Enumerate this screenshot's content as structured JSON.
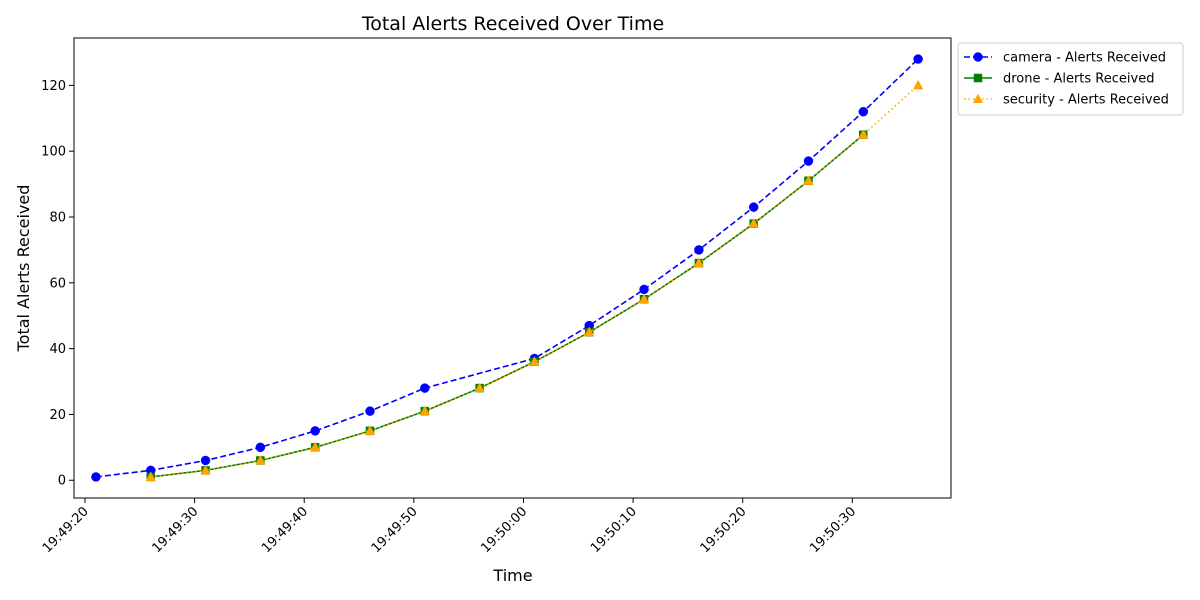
{
  "chart_data": {
    "type": "line",
    "title": "Total Alerts Received Over Time",
    "xlabel": "Time",
    "ylabel": "Total Alerts Received",
    "x_ticks": [
      "19:49:20",
      "19:49:30",
      "19:49:40",
      "19:49:50",
      "19:50:00",
      "19:50:10",
      "19:50:20",
      "19:50:30"
    ],
    "y_ticks": [
      0,
      20,
      40,
      60,
      80,
      100,
      120
    ],
    "xlim": [
      "19:49:19",
      "19:50:39"
    ],
    "ylim": [
      -5.4,
      134.4
    ],
    "grid": false,
    "legend_position": "outside-top-right",
    "series": [
      {
        "name": "camera - Alerts Received",
        "color": "#0000ff",
        "linestyle": "dashed",
        "marker": "circle",
        "points": [
          {
            "x": "19:49:21",
            "y": 1
          },
          {
            "x": "19:49:26",
            "y": 3
          },
          {
            "x": "19:49:31",
            "y": 6
          },
          {
            "x": "19:49:36",
            "y": 10
          },
          {
            "x": "19:49:41",
            "y": 15
          },
          {
            "x": "19:49:46",
            "y": 21
          },
          {
            "x": "19:49:51",
            "y": 28
          },
          {
            "x": "19:50:01",
            "y": 37
          },
          {
            "x": "19:50:06",
            "y": 47
          },
          {
            "x": "19:50:11",
            "y": 58
          },
          {
            "x": "19:50:16",
            "y": 70
          },
          {
            "x": "19:50:21",
            "y": 83
          },
          {
            "x": "19:50:26",
            "y": 97
          },
          {
            "x": "19:50:31",
            "y": 112
          },
          {
            "x": "19:50:36",
            "y": 128
          }
        ]
      },
      {
        "name": "drone - Alerts Received",
        "color": "#008000",
        "linestyle": "solid",
        "marker": "square",
        "points": [
          {
            "x": "19:49:26",
            "y": 1
          },
          {
            "x": "19:49:31",
            "y": 3
          },
          {
            "x": "19:49:36",
            "y": 6
          },
          {
            "x": "19:49:41",
            "y": 10
          },
          {
            "x": "19:49:46",
            "y": 15
          },
          {
            "x": "19:49:51",
            "y": 21
          },
          {
            "x": "19:49:56",
            "y": 28
          },
          {
            "x": "19:50:01",
            "y": 36
          },
          {
            "x": "19:50:06",
            "y": 45
          },
          {
            "x": "19:50:11",
            "y": 55
          },
          {
            "x": "19:50:16",
            "y": 66
          },
          {
            "x": "19:50:21",
            "y": 78
          },
          {
            "x": "19:50:26",
            "y": 91
          },
          {
            "x": "19:50:31",
            "y": 105
          }
        ]
      },
      {
        "name": "security - Alerts Received",
        "color": "#ffa500",
        "linestyle": "dotted",
        "marker": "triangle",
        "points": [
          {
            "x": "19:49:26",
            "y": 1
          },
          {
            "x": "19:49:31",
            "y": 3
          },
          {
            "x": "19:49:36",
            "y": 6
          },
          {
            "x": "19:49:41",
            "y": 10
          },
          {
            "x": "19:49:46",
            "y": 15
          },
          {
            "x": "19:49:51",
            "y": 21
          },
          {
            "x": "19:49:56",
            "y": 28
          },
          {
            "x": "19:50:01",
            "y": 36
          },
          {
            "x": "19:50:06",
            "y": 45
          },
          {
            "x": "19:50:11",
            "y": 55
          },
          {
            "x": "19:50:16",
            "y": 66
          },
          {
            "x": "19:50:21",
            "y": 78
          },
          {
            "x": "19:50:26",
            "y": 91
          },
          {
            "x": "19:50:31",
            "y": 105
          },
          {
            "x": "19:50:36",
            "y": 120
          }
        ]
      }
    ]
  }
}
